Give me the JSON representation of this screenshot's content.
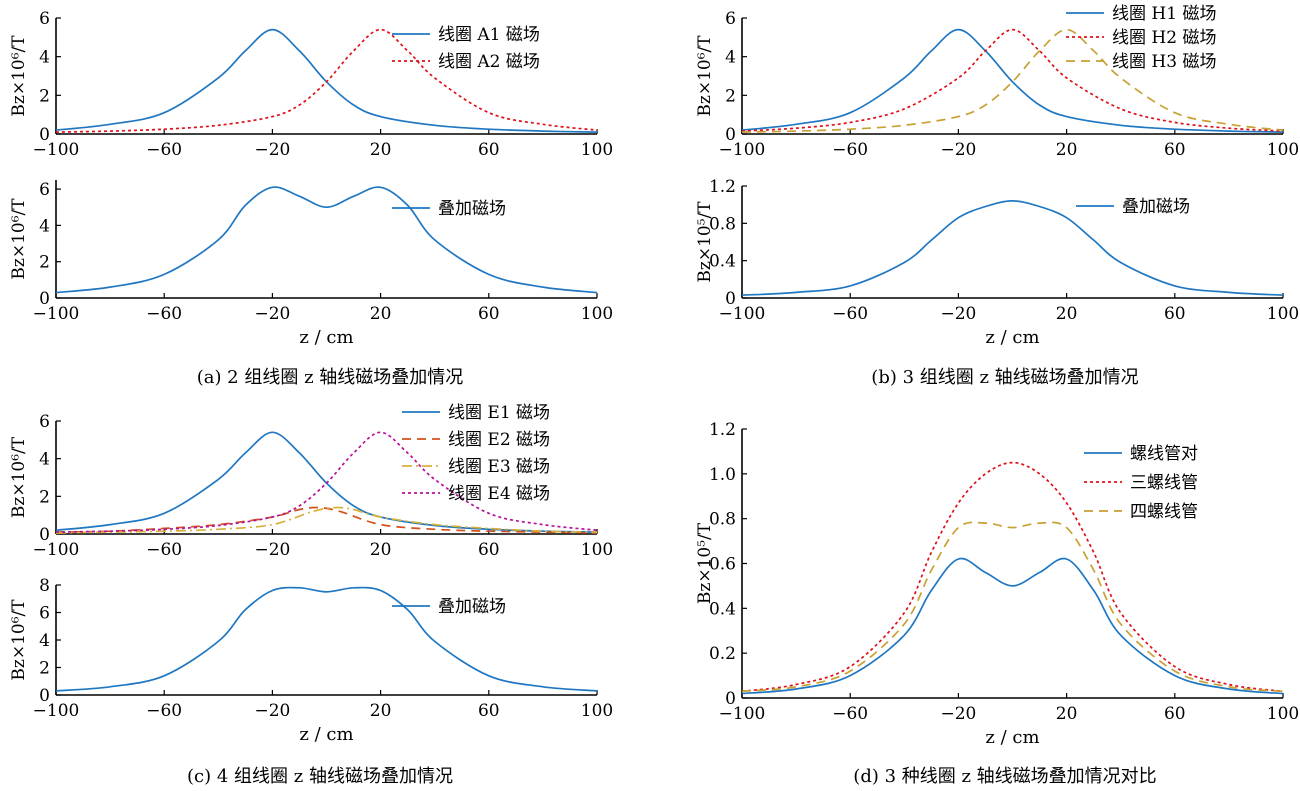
{
  "colors": {
    "blue": "#1f77c2",
    "red": "#e0101a",
    "orange": "#c8a033",
    "darkorange": "#d2501c",
    "gold": "#d8b13c",
    "magenta": "#b8109a"
  },
  "captions": {
    "a": "(a) 2 组线圈 z 轴线磁场叠加情况",
    "b": "(b) 3 组线圈 z 轴线磁场叠加情况",
    "c": "(c) 4 组线圈 z 轴线磁场叠加情况",
    "d": "(d) 3 种线圈 z 轴线磁场叠加情况对比"
  },
  "chart_data": [
    {
      "id": "a-top",
      "type": "line",
      "xlim": [
        -100,
        100
      ],
      "ylim": [
        0,
        6
      ],
      "xticks": [
        "−100",
        "−60",
        "−20",
        "20",
        "60",
        "100"
      ],
      "xtick_values": [
        -100,
        -60,
        -20,
        20,
        60,
        100
      ],
      "yticks": [
        "0",
        "2",
        "4",
        "6"
      ],
      "ytick_values": [
        0,
        2,
        4,
        6
      ],
      "ylabel": "Bz×10⁶/T",
      "xlabel": "",
      "series": [
        {
          "name": "线圈 A1 磁场",
          "style": "solid",
          "color": "#1f77c2",
          "x": [
            -100,
            -80,
            -60,
            -40,
            -30,
            -20,
            -10,
            0,
            10,
            20,
            40,
            60,
            80,
            100
          ],
          "y": [
            0.2,
            0.5,
            1.1,
            2.9,
            4.3,
            5.4,
            4.3,
            2.7,
            1.5,
            0.9,
            0.45,
            0.25,
            0.15,
            0.1
          ]
        },
        {
          "name": "线圈 A2 磁场",
          "style": "dotted",
          "color": "#e0101a",
          "x": [
            -100,
            -80,
            -60,
            -40,
            -20,
            -10,
            0,
            10,
            20,
            30,
            40,
            60,
            80,
            100
          ],
          "y": [
            0.1,
            0.15,
            0.25,
            0.45,
            0.9,
            1.5,
            2.7,
            4.3,
            5.4,
            4.3,
            2.9,
            1.1,
            0.5,
            0.2
          ]
        }
      ]
    },
    {
      "id": "a-bottom",
      "type": "line",
      "xlim": [
        -100,
        100
      ],
      "ylim": [
        0,
        6.5
      ],
      "xticks": [
        "−100",
        "−60",
        "−20",
        "20",
        "60",
        "100"
      ],
      "xtick_values": [
        -100,
        -60,
        -20,
        20,
        60,
        100
      ],
      "yticks": [
        "0",
        "2",
        "4",
        "6"
      ],
      "ytick_values": [
        0,
        2,
        4,
        6
      ],
      "ylabel": "Bz×10⁶/T",
      "xlabel": "z / cm",
      "series": [
        {
          "name": "叠加磁场",
          "style": "solid",
          "color": "#1f77c2",
          "x": [
            -100,
            -80,
            -60,
            -40,
            -30,
            -20,
            -10,
            0,
            10,
            20,
            30,
            40,
            60,
            80,
            100
          ],
          "y": [
            0.3,
            0.6,
            1.3,
            3.2,
            5.1,
            6.1,
            5.6,
            5.0,
            5.6,
            6.1,
            5.1,
            3.2,
            1.3,
            0.6,
            0.3
          ]
        }
      ]
    },
    {
      "id": "b-top",
      "type": "line",
      "xlim": [
        -100,
        100
      ],
      "ylim": [
        0,
        6
      ],
      "xticks": [
        "−100",
        "−60",
        "−20",
        "20",
        "60",
        "100"
      ],
      "xtick_values": [
        -100,
        -60,
        -20,
        20,
        60,
        100
      ],
      "yticks": [
        "0",
        "2",
        "4",
        "6"
      ],
      "ytick_values": [
        0,
        2,
        4,
        6
      ],
      "ylabel": "Bz×10⁶/T",
      "xlabel": "",
      "series": [
        {
          "name": "线圈 H1 磁场",
          "style": "solid",
          "color": "#1f77c2",
          "x": [
            -100,
            -80,
            -60,
            -40,
            -30,
            -20,
            -10,
            0,
            10,
            20,
            40,
            60,
            80,
            100
          ],
          "y": [
            0.2,
            0.5,
            1.1,
            2.9,
            4.3,
            5.4,
            4.3,
            2.7,
            1.5,
            0.9,
            0.45,
            0.25,
            0.15,
            0.1
          ]
        },
        {
          "name": "线圈 H2 磁场",
          "style": "dotted",
          "color": "#e0101a",
          "x": [
            -100,
            -80,
            -60,
            -40,
            -20,
            -10,
            0,
            10,
            20,
            40,
            60,
            80,
            100
          ],
          "y": [
            0.15,
            0.3,
            0.6,
            1.3,
            2.9,
            4.3,
            5.4,
            4.3,
            2.9,
            1.3,
            0.6,
            0.3,
            0.15
          ]
        },
        {
          "name": "线圈 H3 磁场",
          "style": "dashed",
          "color": "#c8a033",
          "x": [
            -100,
            -80,
            -60,
            -40,
            -20,
            -10,
            0,
            10,
            20,
            30,
            40,
            60,
            80,
            100
          ],
          "y": [
            0.1,
            0.15,
            0.25,
            0.45,
            0.9,
            1.5,
            2.7,
            4.3,
            5.4,
            4.3,
            2.9,
            1.1,
            0.5,
            0.2
          ]
        }
      ]
    },
    {
      "id": "b-bottom",
      "type": "line",
      "xlim": [
        -100,
        100
      ],
      "ylim": [
        0,
        1.2
      ],
      "xticks": [
        "−100",
        "−60",
        "−20",
        "20",
        "60",
        "100"
      ],
      "xtick_values": [
        -100,
        -60,
        -20,
        20,
        60,
        100
      ],
      "yticks": [
        "0",
        "0.4",
        "0.8",
        "1.2"
      ],
      "ytick_values": [
        0,
        0.4,
        0.8,
        1.2
      ],
      "ylabel": "Bz×10⁵/T",
      "xlabel": "z / cm",
      "series": [
        {
          "name": "叠加磁场",
          "style": "solid",
          "color": "#1f77c2",
          "x": [
            -100,
            -80,
            -60,
            -40,
            -30,
            -20,
            -10,
            0,
            10,
            20,
            30,
            40,
            60,
            80,
            100
          ],
          "y": [
            0.03,
            0.06,
            0.13,
            0.38,
            0.62,
            0.86,
            0.98,
            1.04,
            0.98,
            0.86,
            0.62,
            0.38,
            0.13,
            0.06,
            0.03
          ]
        }
      ]
    },
    {
      "id": "c-top",
      "type": "line",
      "xlim": [
        -100,
        100
      ],
      "ylim": [
        0,
        6
      ],
      "xticks": [
        "−100",
        "−60",
        "−20",
        "20",
        "60",
        "100"
      ],
      "xtick_values": [
        -100,
        -60,
        -20,
        20,
        60,
        100
      ],
      "yticks": [
        "0",
        "2",
        "4",
        "6"
      ],
      "ytick_values": [
        0,
        2,
        4,
        6
      ],
      "ylabel": "Bz×10⁶/T",
      "xlabel": "",
      "series": [
        {
          "name": "线圈 E1 磁场",
          "style": "solid",
          "color": "#1f77c2",
          "x": [
            -100,
            -80,
            -60,
            -40,
            -30,
            -20,
            -10,
            0,
            10,
            20,
            40,
            60,
            80,
            100
          ],
          "y": [
            0.2,
            0.5,
            1.1,
            2.9,
            4.3,
            5.4,
            4.3,
            2.7,
            1.5,
            0.9,
            0.45,
            0.25,
            0.15,
            0.1
          ]
        },
        {
          "name": "线圈 E2 磁场",
          "style": "dashed",
          "color": "#d2501c",
          "x": [
            -100,
            -80,
            -60,
            -40,
            -20,
            -10,
            -3,
            5,
            20,
            40,
            60,
            80,
            100
          ],
          "y": [
            0.1,
            0.15,
            0.3,
            0.5,
            0.9,
            1.3,
            1.4,
            1.2,
            0.5,
            0.25,
            0.15,
            0.1,
            0.05
          ]
        },
        {
          "name": "线圈 E3 磁场",
          "style": "dashdot",
          "color": "#d8b13c",
          "x": [
            -100,
            -80,
            -60,
            -40,
            -20,
            -5,
            3,
            10,
            20,
            40,
            60,
            80,
            100
          ],
          "y": [
            0.05,
            0.1,
            0.15,
            0.25,
            0.5,
            1.2,
            1.4,
            1.3,
            0.9,
            0.5,
            0.3,
            0.15,
            0.1
          ]
        },
        {
          "name": "线圈 E4 磁场",
          "style": "dotted",
          "color": "#b8109a",
          "x": [
            -100,
            -80,
            -60,
            -40,
            -20,
            -10,
            0,
            10,
            20,
            30,
            40,
            60,
            80,
            100
          ],
          "y": [
            0.1,
            0.15,
            0.25,
            0.45,
            0.9,
            1.5,
            2.7,
            4.3,
            5.4,
            4.3,
            2.9,
            1.1,
            0.5,
            0.2
          ]
        }
      ]
    },
    {
      "id": "c-bottom",
      "type": "line",
      "xlim": [
        -100,
        100
      ],
      "ylim": [
        0,
        8
      ],
      "xticks": [
        "−100",
        "−60",
        "−20",
        "20",
        "60",
        "100"
      ],
      "xtick_values": [
        -100,
        -60,
        -20,
        20,
        60,
        100
      ],
      "yticks": [
        "0",
        "2",
        "4",
        "6",
        "8"
      ],
      "ytick_values": [
        0,
        2,
        4,
        6,
        8
      ],
      "ylabel": "Bz×10⁶/T",
      "xlabel": "z / cm",
      "series": [
        {
          "name": "叠加磁场",
          "style": "solid",
          "color": "#1f77c2",
          "x": [
            -100,
            -80,
            -60,
            -40,
            -30,
            -20,
            -10,
            0,
            10,
            20,
            30,
            40,
            60,
            80,
            100
          ],
          "y": [
            0.3,
            0.6,
            1.4,
            3.9,
            6.2,
            7.6,
            7.8,
            7.5,
            7.8,
            7.6,
            6.2,
            3.9,
            1.4,
            0.6,
            0.3
          ]
        }
      ]
    },
    {
      "id": "d",
      "type": "line",
      "xlim": [
        -100,
        100
      ],
      "ylim": [
        0,
        1.2
      ],
      "xticks": [
        "−100",
        "−60",
        "−20",
        "20",
        "60",
        "100"
      ],
      "xtick_values": [
        -100,
        -60,
        -20,
        20,
        60,
        100
      ],
      "yticks": [
        "0",
        "0.2",
        "0.4",
        "0.6",
        "0.8",
        "1.0",
        "1.2"
      ],
      "ytick_values": [
        0,
        0.2,
        0.4,
        0.6,
        0.8,
        1.0,
        1.2
      ],
      "ylabel": "Bz×10⁵/T",
      "xlabel": "z / cm",
      "series": [
        {
          "name": "螺线管对",
          "style": "solid",
          "color": "#1f77c2",
          "x": [
            -100,
            -80,
            -60,
            -40,
            -30,
            -20,
            -10,
            0,
            10,
            20,
            30,
            40,
            60,
            80,
            100
          ],
          "y": [
            0.02,
            0.04,
            0.1,
            0.28,
            0.48,
            0.62,
            0.56,
            0.5,
            0.56,
            0.62,
            0.48,
            0.28,
            0.1,
            0.04,
            0.02
          ]
        },
        {
          "name": "三螺线管",
          "style": "dotted",
          "color": "#e0101a",
          "x": [
            -100,
            -80,
            -60,
            -40,
            -30,
            -20,
            -10,
            0,
            10,
            20,
            30,
            40,
            60,
            80,
            100
          ],
          "y": [
            0.03,
            0.06,
            0.14,
            0.38,
            0.65,
            0.87,
            1.0,
            1.05,
            1.0,
            0.87,
            0.65,
            0.38,
            0.14,
            0.06,
            0.03
          ]
        },
        {
          "name": "四螺线管",
          "style": "dashed",
          "color": "#c8a033",
          "x": [
            -100,
            -80,
            -60,
            -40,
            -30,
            -20,
            -10,
            0,
            10,
            20,
            30,
            40,
            60,
            80,
            100
          ],
          "y": [
            0.03,
            0.05,
            0.12,
            0.33,
            0.57,
            0.76,
            0.78,
            0.76,
            0.78,
            0.76,
            0.57,
            0.33,
            0.12,
            0.05,
            0.03
          ]
        }
      ]
    }
  ]
}
